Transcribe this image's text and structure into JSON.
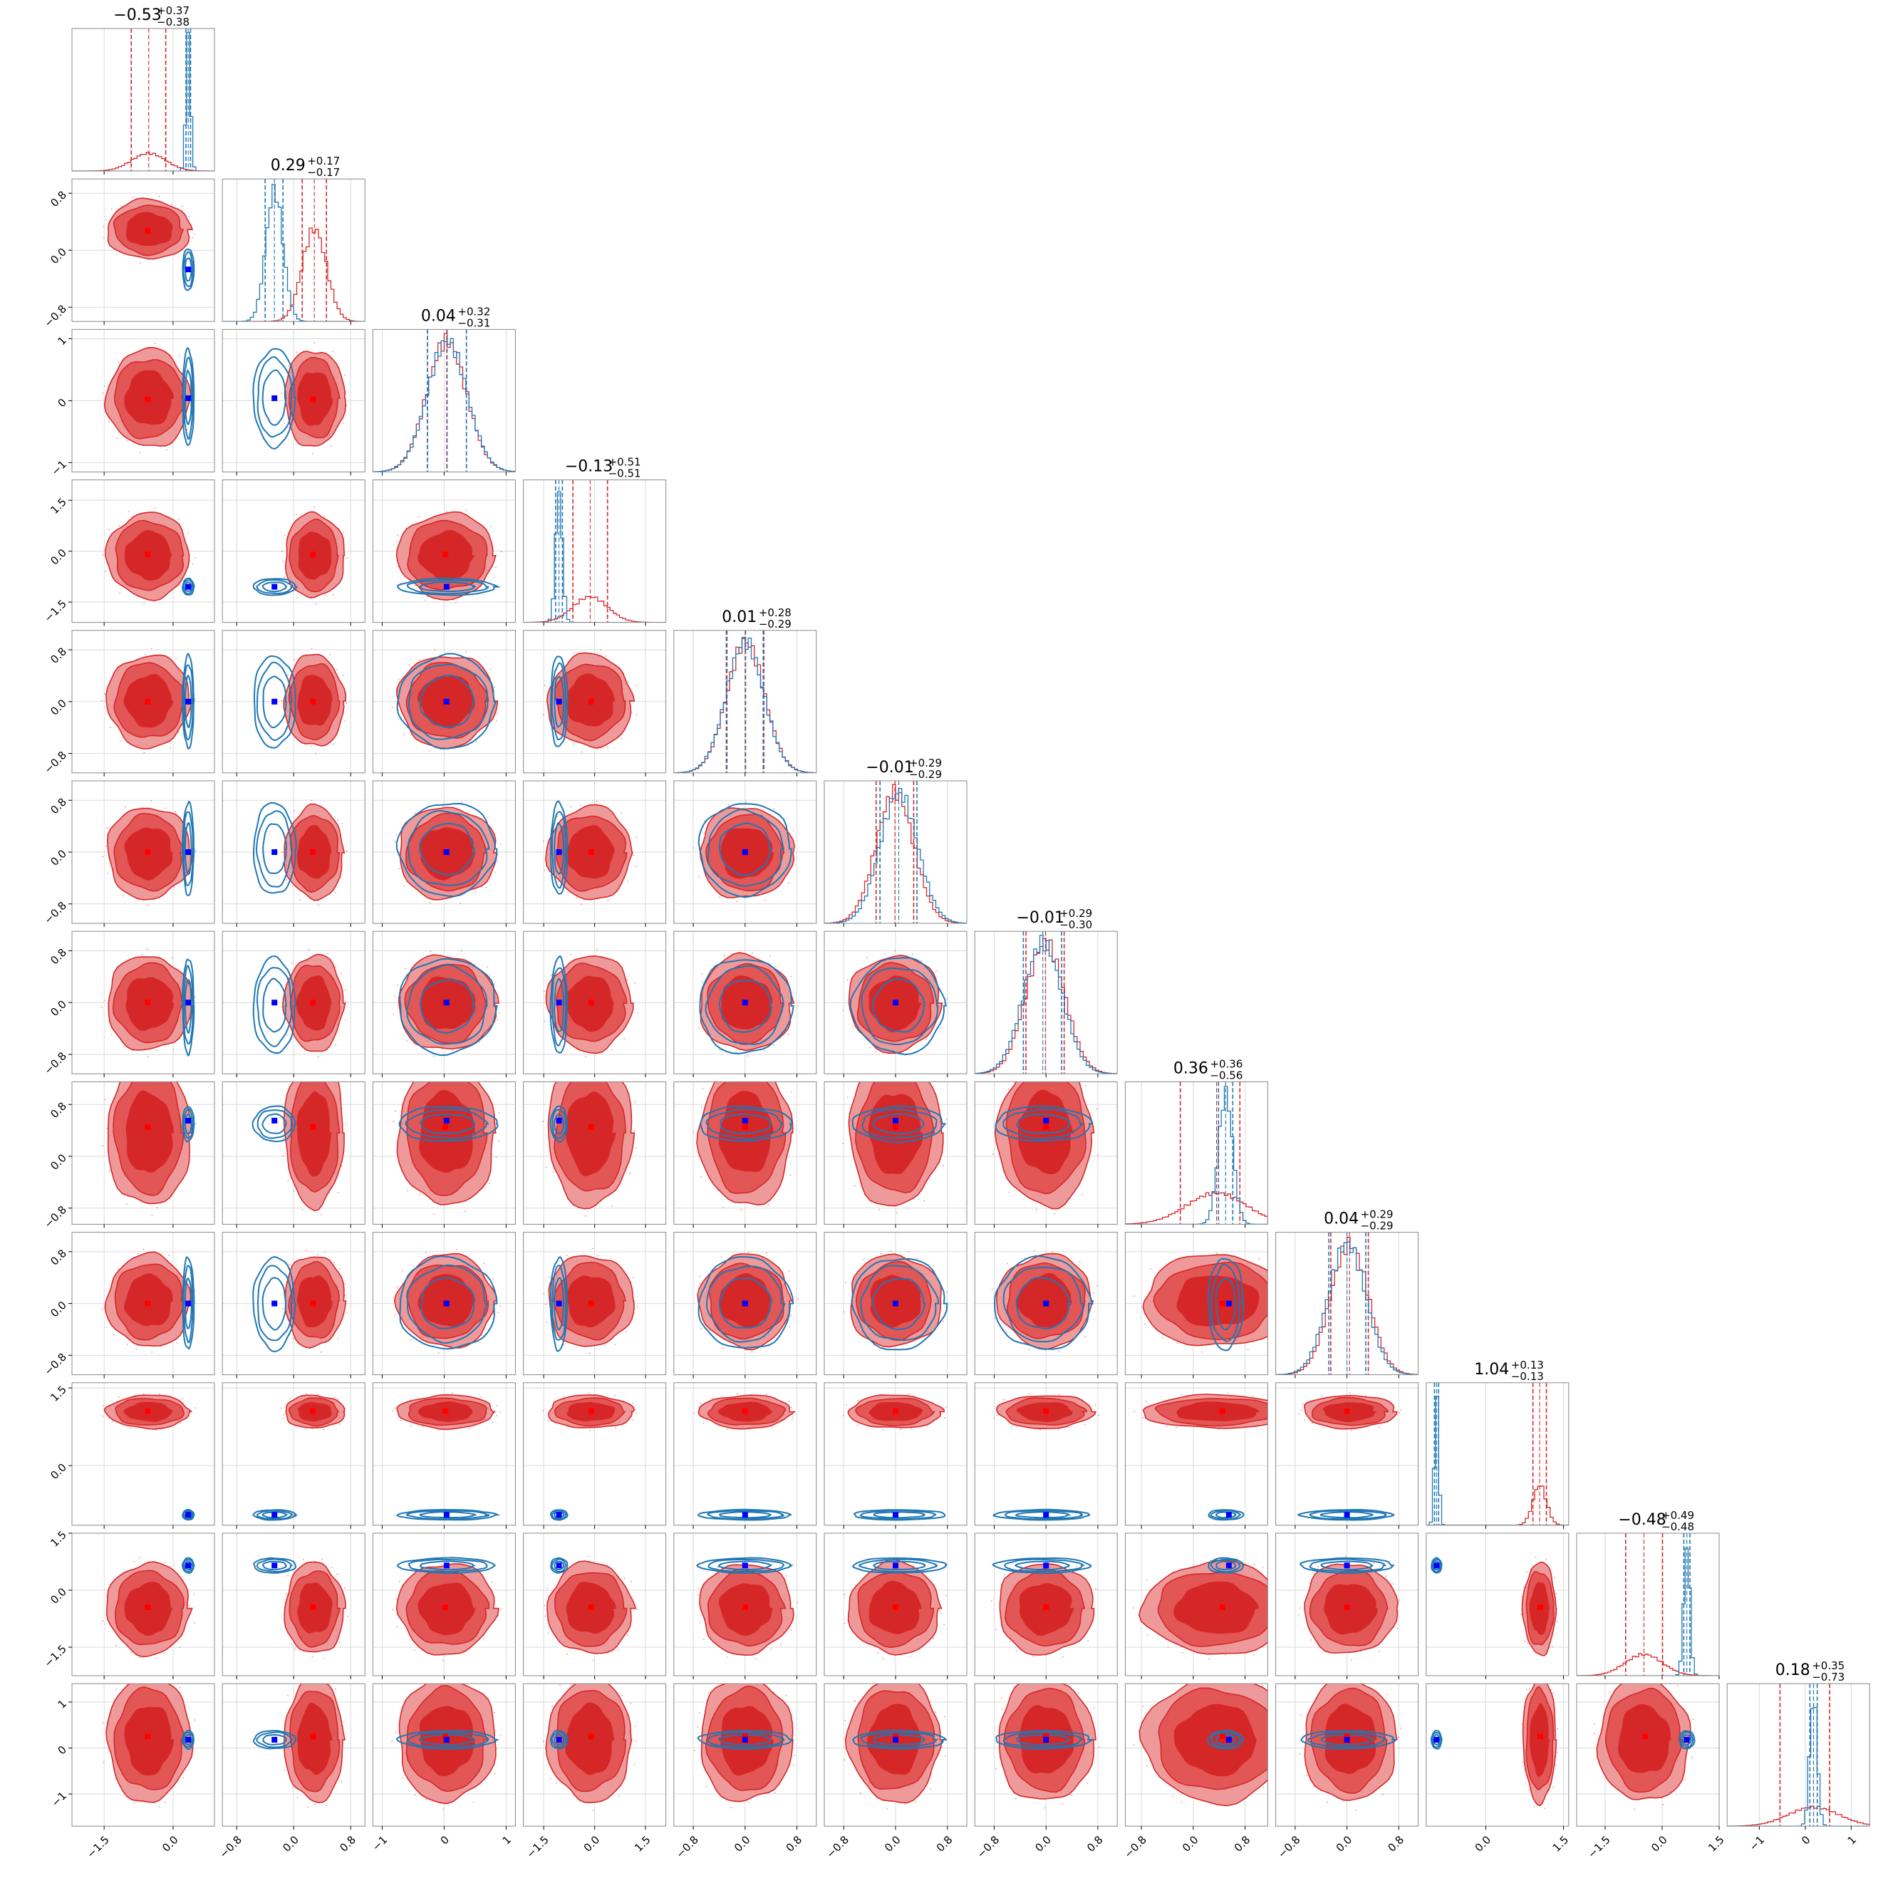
{
  "chart_data": {
    "type": "corner",
    "n_params": 12,
    "grid": true,
    "colors": {
      "red": "#d62728",
      "red_light": "#ef9a9a",
      "red_mid": "#e35656",
      "blue": "#1f77b4",
      "marker_red": "#ff0000",
      "marker_blue": "#0000ff"
    },
    "ticks": [
      {
        "values": [
          -1.5,
          0.0
        ],
        "labels": [
          "−1.5",
          "0.0"
        ]
      },
      {
        "values": [
          -0.8,
          0.0,
          0.8
        ],
        "labels": [
          "−0.8",
          "0.0",
          "0.8"
        ]
      },
      {
        "values": [
          -1,
          0,
          1
        ],
        "labels": [
          "−1",
          "0",
          "1"
        ]
      },
      {
        "values": [
          -1.5,
          0.0,
          1.5
        ],
        "labels": [
          "−1.5",
          "0.0",
          "1.5"
        ]
      },
      {
        "values": [
          -0.8,
          0.0,
          0.8
        ],
        "labels": [
          "−0.8",
          "0.0",
          "0.8"
        ]
      },
      {
        "values": [
          -0.8,
          0.0,
          0.8
        ],
        "labels": [
          "−0.8",
          "0.0",
          "0.8"
        ]
      },
      {
        "values": [
          -0.8,
          0.0,
          0.8
        ],
        "labels": [
          "−0.8",
          "0.0",
          "0.8"
        ]
      },
      {
        "values": [
          -0.8,
          0.0,
          0.8
        ],
        "labels": [
          "−0.8",
          "0.0",
          "0.8"
        ]
      },
      {
        "values": [
          -0.8,
          0.0,
          0.8
        ],
        "labels": [
          "−0.8",
          "0.0",
          "0.8"
        ]
      },
      {
        "values": [
          0.0,
          1.5
        ],
        "labels": [
          "0.0",
          "1.5"
        ]
      },
      {
        "values": [
          -1.5,
          0.0,
          1.5
        ],
        "labels": [
          "−1.5",
          "0.0",
          "1.5"
        ]
      },
      {
        "values": [
          -1,
          0,
          1
        ],
        "labels": [
          "−1",
          "0",
          "1"
        ]
      }
    ],
    "ranges": [
      [
        -2.2,
        0.9
      ],
      [
        -1.0,
        1.0
      ],
      [
        -1.15,
        1.15
      ],
      [
        -2.1,
        2.1
      ],
      [
        -1.1,
        1.1
      ],
      [
        -1.1,
        1.1
      ],
      [
        -1.1,
        1.1
      ],
      [
        -1.05,
        1.15
      ],
      [
        -1.1,
        1.1
      ],
      [
        -1.15,
        1.6
      ],
      [
        -2.25,
        1.5
      ],
      [
        -1.7,
        1.4
      ]
    ],
    "titles": [
      {
        "main": "−0.53",
        "sup": "+0.37",
        "sub": "−0.38"
      },
      {
        "main": "0.29",
        "sup": "+0.17",
        "sub": "−0.17"
      },
      {
        "main": "0.04",
        "sup": "+0.32",
        "sub": "−0.31"
      },
      {
        "main": "−0.13",
        "sup": "+0.51",
        "sub": "−0.51"
      },
      {
        "main": "0.01",
        "sup": "+0.28",
        "sub": "−0.29"
      },
      {
        "main": "−0.01",
        "sup": "+0.29",
        "sub": "−0.29"
      },
      {
        "main": "−0.01",
        "sup": "+0.29",
        "sub": "−0.30"
      },
      {
        "main": "0.36",
        "sup": "+0.36",
        "sub": "−0.56"
      },
      {
        "main": "0.04",
        "sup": "+0.29",
        "sub": "−0.29"
      },
      {
        "main": "1.04",
        "sup": "+0.13",
        "sub": "−0.13"
      },
      {
        "main": "−0.48",
        "sup": "+0.49",
        "sub": "−0.48"
      },
      {
        "main": "0.18",
        "sup": "+0.35",
        "sub": "−0.73"
      }
    ],
    "series": [
      {
        "color": "red",
        "means": [
          -0.53,
          0.29,
          0.04,
          -0.13,
          0.01,
          -0.01,
          -0.01,
          0.36,
          0.04,
          1.04,
          -0.48,
          0.18
        ],
        "sds": [
          0.37,
          0.17,
          0.32,
          0.51,
          0.29,
          0.29,
          0.3,
          0.46,
          0.29,
          0.13,
          0.49,
          0.55
        ],
        "quantiles": [
          [
            -0.91,
            -0.16
          ],
          [
            0.12,
            0.46
          ],
          [
            -0.27,
            0.36
          ],
          [
            -0.64,
            0.38
          ],
          [
            -0.28,
            0.29
          ],
          [
            -0.3,
            0.28
          ],
          [
            -0.31,
            0.28
          ],
          [
            -0.2,
            0.72
          ],
          [
            -0.25,
            0.33
          ],
          [
            0.91,
            1.17
          ],
          [
            -0.96,
            0.01
          ],
          [
            -0.55,
            0.53
          ]
        ],
        "markers": [
          -0.55,
          0.27,
          0.02,
          -0.1,
          0.0,
          0.0,
          0.0,
          0.45,
          0.0,
          1.05,
          -0.45,
          0.25
        ]
      },
      {
        "color": "blue",
        "means": [
          0.33,
          -0.27,
          0.05,
          -1.05,
          0.0,
          0.05,
          -0.05,
          0.5,
          0.0,
          -0.95,
          0.65,
          0.18
        ],
        "sds": [
          0.05,
          0.12,
          0.32,
          0.1,
          0.29,
          0.29,
          0.3,
          0.11,
          0.29,
          0.04,
          0.08,
          0.08
        ],
        "quantiles": [
          [
            0.28,
            0.38
          ],
          [
            -0.4,
            -0.15
          ],
          [
            -0.27,
            0.36
          ],
          [
            -1.15,
            -0.95
          ],
          [
            -0.29,
            0.28
          ],
          [
            -0.24,
            0.33
          ],
          [
            -0.35,
            0.24
          ],
          [
            0.39,
            0.61
          ],
          [
            -0.28,
            0.29
          ],
          [
            -0.99,
            -0.91
          ],
          [
            0.57,
            0.73
          ],
          [
            0.1,
            0.26
          ]
        ],
        "markers": [
          0.33,
          -0.27,
          0.04,
          -1.05,
          0.0,
          0.0,
          0.0,
          0.55,
          0.0,
          -0.95,
          0.65,
          0.18
        ]
      }
    ]
  }
}
